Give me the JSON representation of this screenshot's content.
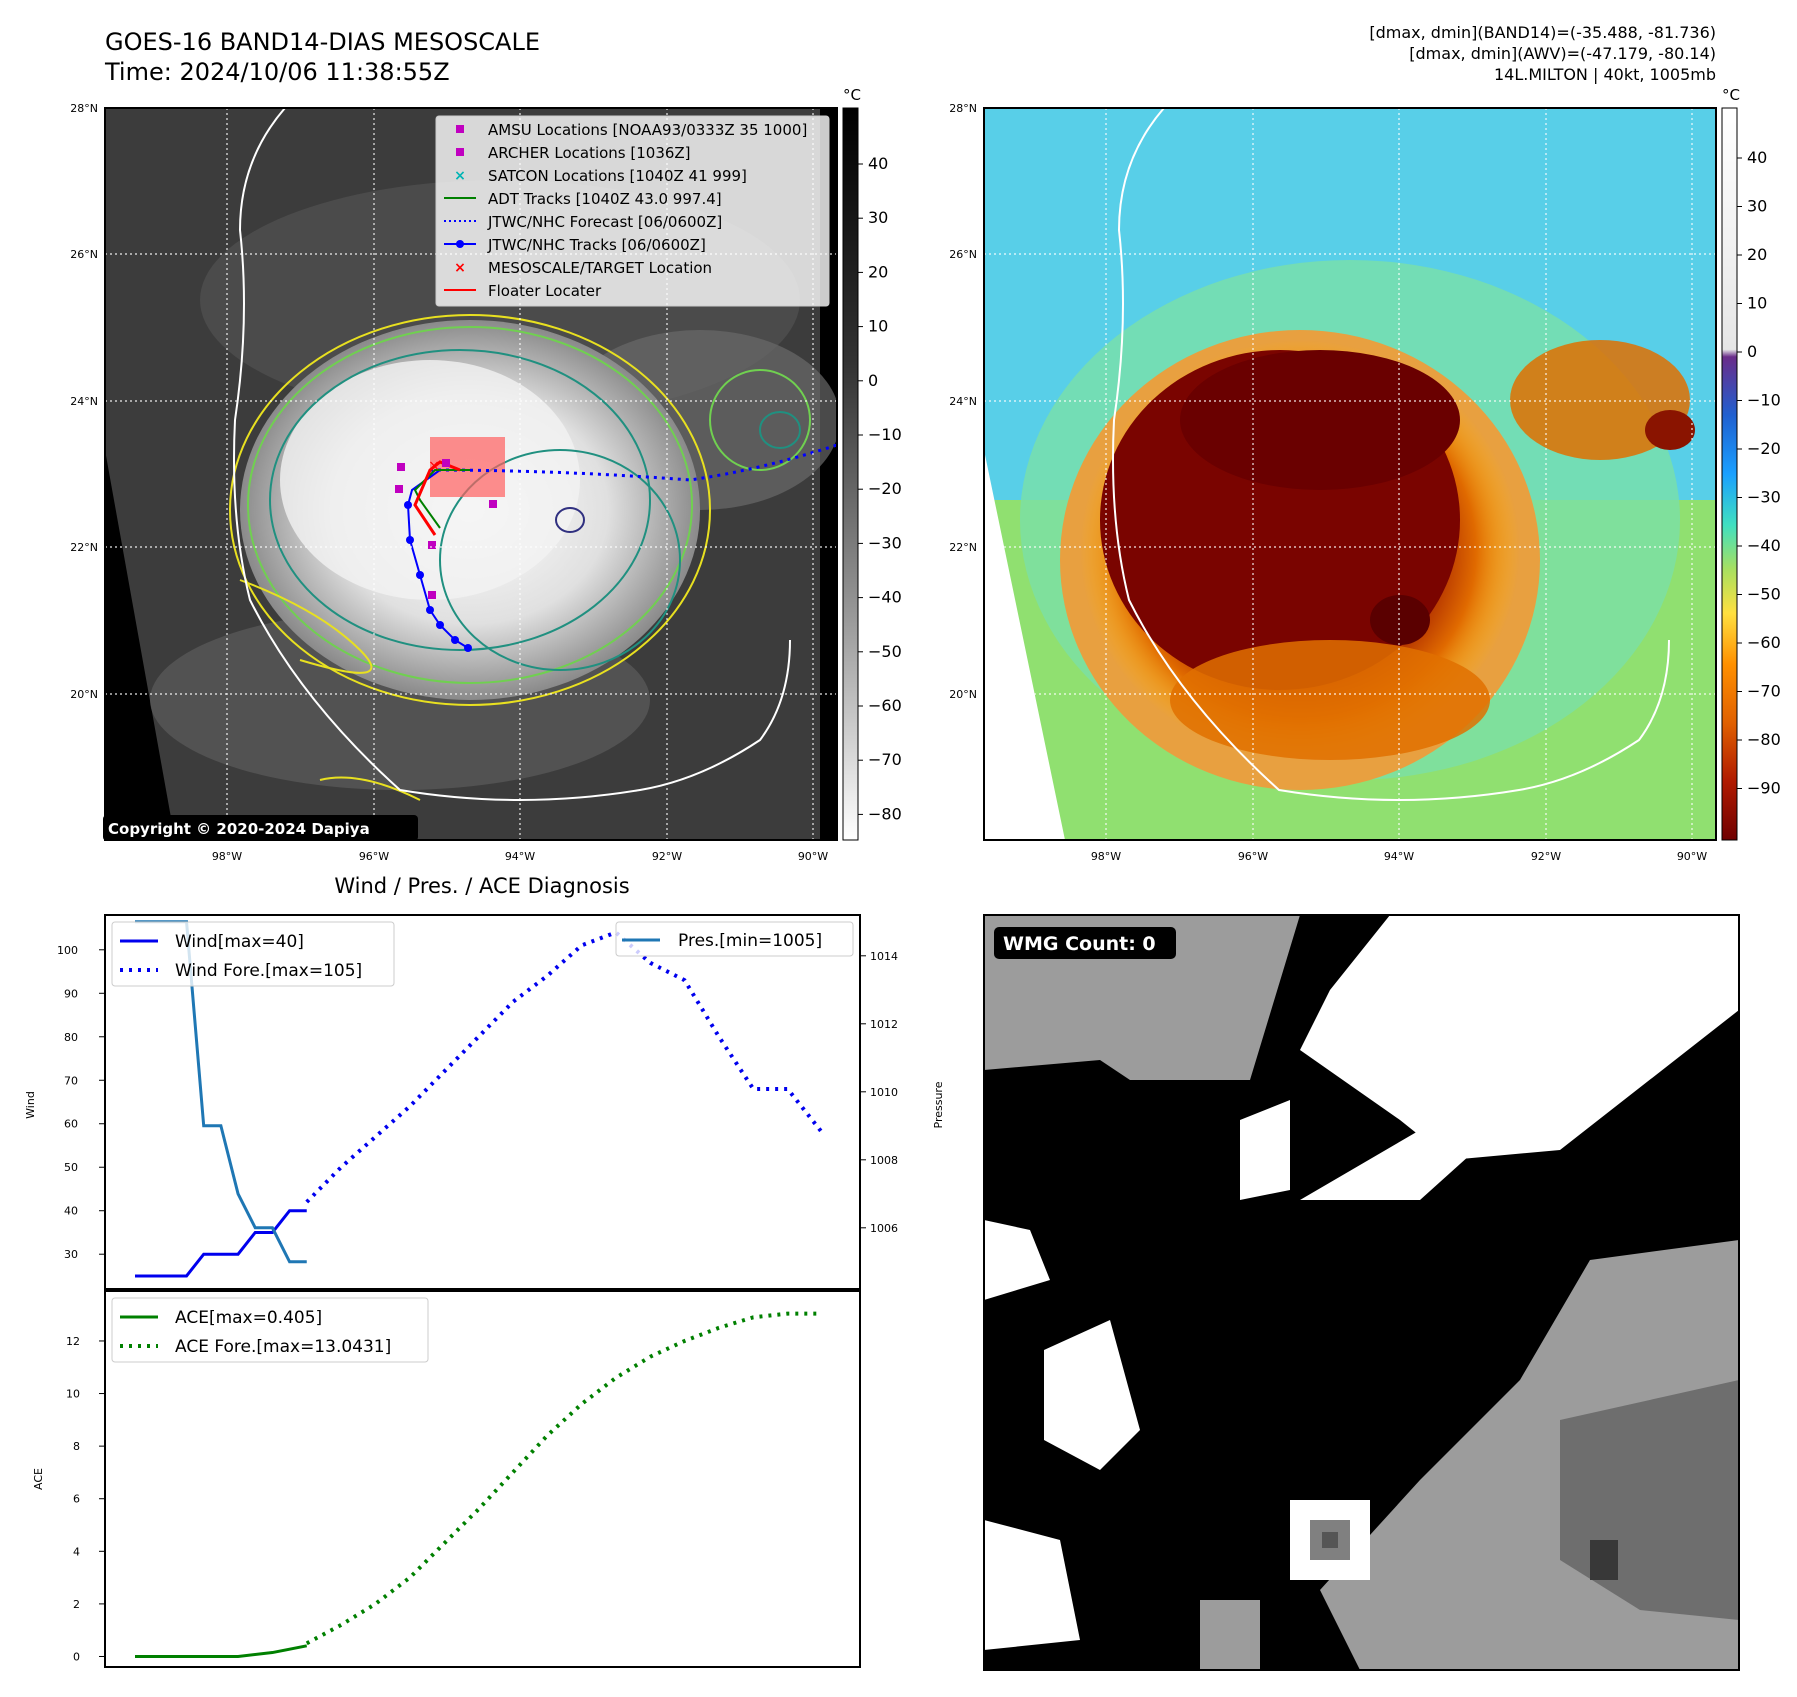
{
  "header": {
    "title_line1": "GOES-16 BAND14-DIAS MESOSCALE",
    "title_line2": "Time: 2024/10/06 11:38:55Z",
    "info_line1": "[dmax, dmin](BAND14)=(-35.488, -81.736)",
    "info_line2": "[dmax, dmin](AWV)=(-47.179, -80.14)",
    "info_line3": "14L.MILTON | 40kt, 1005mb"
  },
  "map_panel": {
    "lat_labels": [
      "28°N",
      "26°N",
      "24°N",
      "22°N",
      "20°N"
    ],
    "lon_labels": [
      "98°W",
      "96°W",
      "94°W",
      "92°W",
      "90°W"
    ],
    "copyright": "Copyright © 2020-2024 Dapiya",
    "legend": [
      "AMSU Locations [NOAA93/0333Z 35 1000]",
      "ARCHER Locations [1036Z]",
      "SATCON Locations [1040Z 41 999]",
      "ADT Tracks [1040Z 43.0 997.4]",
      "JTWC/NHC Forecast [06/0600Z]",
      "JTWC/NHC Tracks [06/0600Z]",
      "MESOSCALE/TARGET Location",
      "Floater Locater"
    ],
    "colorbar_unit": "°C",
    "colorbar_ticks": [
      "40",
      "30",
      "20",
      "10",
      "0",
      "−10",
      "−20",
      "−30",
      "−40",
      "−50",
      "−60",
      "−70",
      "−80"
    ],
    "colors": {
      "amsu": "#c000c0",
      "archer": "#c000c0",
      "satcon": "#00b4b4",
      "adt": "#008000",
      "forecast": "#0000ff",
      "track": "#0000ff",
      "target": "#ff0000",
      "floater": "#ff0000"
    }
  },
  "awv_panel": {
    "lat_labels": [
      "28°N",
      "26°N",
      "24°N",
      "22°N",
      "20°N"
    ],
    "lon_labels": [
      "98°W",
      "96°W",
      "94°W",
      "92°W",
      "90°W"
    ],
    "colorbar_unit": "°C",
    "colorbar_ticks": [
      "40",
      "30",
      "20",
      "10",
      "0",
      "−10",
      "−20",
      "−30",
      "−40",
      "−50",
      "−60",
      "−70",
      "−80",
      "−90"
    ]
  },
  "wmg_panel": {
    "label": "WMG Count: 0"
  },
  "chart_data": [
    {
      "type": "line",
      "title": "Wind / Pres. / ACE Diagnosis",
      "xlabel": "",
      "ylabel": "Wind",
      "ylabel_right": "Pressure",
      "ylim": [
        22,
        108
      ],
      "ylim_right": [
        1004.2,
        1015.2
      ],
      "yticks": [
        30,
        40,
        50,
        60,
        70,
        80,
        90,
        100
      ],
      "yticks_right": [
        1006,
        1008,
        1010,
        1012,
        1014
      ],
      "series": [
        {
          "name": "Wind[max=40]",
          "style": "solid",
          "color": "#0000ee",
          "axis": "left",
          "x": [
            0,
            1,
            2,
            3,
            4,
            5,
            6,
            7,
            8,
            9,
            10
          ],
          "y": [
            25,
            25,
            25,
            25,
            30,
            30,
            30,
            35,
            35,
            40,
            40
          ]
        },
        {
          "name": "Wind Fore.[max=105]",
          "style": "dotted",
          "color": "#0000ee",
          "axis": "left",
          "x": [
            10,
            12,
            14,
            16,
            18,
            20,
            22,
            24,
            26,
            28,
            30,
            32,
            34,
            36,
            38,
            40
          ],
          "y": [
            42,
            50,
            57,
            64,
            72,
            80,
            88,
            94,
            101,
            104,
            97,
            93,
            80,
            68,
            68,
            58
          ]
        },
        {
          "name": "Pres.[min=1005]",
          "style": "solid",
          "color": "#1f77b4",
          "axis": "right",
          "x": [
            0,
            1,
            2,
            3,
            4,
            5,
            6,
            7,
            8,
            9,
            10
          ],
          "y": [
            1015,
            1015,
            1015,
            1015,
            1009,
            1009,
            1007,
            1006,
            1006,
            1005,
            1005
          ]
        }
      ]
    },
    {
      "type": "line",
      "title": "",
      "ylabel": "ACE",
      "ylim": [
        -0.4,
        13.9
      ],
      "yticks": [
        0,
        2,
        4,
        6,
        8,
        10,
        12
      ],
      "series": [
        {
          "name": "ACE[max=0.405]",
          "style": "solid",
          "color": "#008000",
          "x": [
            0,
            2,
            4,
            6,
            8,
            10
          ],
          "y": [
            0,
            0,
            0,
            0,
            0.15,
            0.405
          ]
        },
        {
          "name": "ACE Fore.[max=13.0431]",
          "style": "dotted",
          "color": "#008000",
          "x": [
            10,
            12,
            14,
            16,
            18,
            20,
            22,
            24,
            26,
            28,
            30,
            32,
            34,
            36,
            38,
            40
          ],
          "y": [
            0.5,
            1.2,
            2.0,
            3.0,
            4.3,
            5.6,
            7.0,
            8.4,
            9.6,
            10.6,
            11.4,
            12.0,
            12.5,
            12.9,
            13.04,
            13.04
          ]
        }
      ]
    }
  ]
}
